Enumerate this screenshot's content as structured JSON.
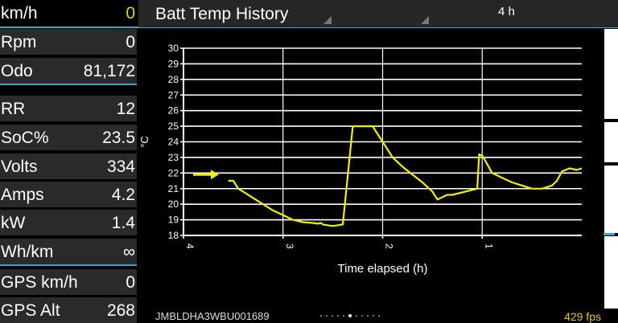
{
  "sidebar": {
    "rows": [
      {
        "label": "km/h",
        "value": "0"
      },
      {
        "label": "Rpm",
        "value": "0"
      },
      {
        "label": "Odo",
        "value": "81,172"
      },
      {
        "label": "RR",
        "value": "12"
      },
      {
        "label": "SoC%",
        "value": "23.5"
      },
      {
        "label": "Volts",
        "value": "334"
      },
      {
        "label": "Amps",
        "value": "4.2"
      },
      {
        "label": "kW",
        "value": "1.4"
      },
      {
        "label": "Wh/km",
        "value": "∞"
      },
      {
        "label": "GPS km/h",
        "value": "0"
      },
      {
        "label": "GPS Alt",
        "value": "268"
      }
    ]
  },
  "header": {
    "title": "Batt Temp History",
    "range": "4 h"
  },
  "footer": {
    "vin": "JMBLDHA3WBU001689",
    "fps": "429 fps"
  },
  "colors": {
    "accent": "#32a6c8",
    "line": "#f0f000",
    "highlight": "#c8e000",
    "fps": "#e6c800"
  },
  "chart_data": {
    "type": "line",
    "title": "",
    "xlabel": "Time elapsed (h)",
    "ylabel": "°C",
    "xlim": [
      4,
      0
    ],
    "ylim": [
      18,
      30
    ],
    "x_ticks": [
      "4",
      "3",
      "2",
      "1"
    ],
    "y_ticks": [
      "18",
      "19",
      "20",
      "21",
      "22",
      "23",
      "24",
      "25",
      "26",
      "27",
      "28",
      "29",
      "30"
    ],
    "annotation": "arrow pointing at current series start",
    "series": [
      {
        "x": [
          3.55,
          3.5,
          3.45,
          3.4,
          3.3,
          3.2,
          3.1,
          3.0,
          2.9,
          2.8,
          2.7,
          2.65,
          2.62,
          2.6,
          2.5,
          2.4,
          2.3,
          2.2,
          2.1,
          2.0,
          1.9,
          1.8,
          1.7,
          1.6,
          1.5,
          1.45,
          1.35,
          1.3,
          1.05,
          1.03,
          1.0,
          0.97,
          0.9,
          0.8,
          0.7,
          0.6,
          0.5,
          0.4,
          0.3,
          0.25,
          0.2,
          0.12,
          0.05,
          0.0
        ],
        "y": [
          21.5,
          21.5,
          21.0,
          20.8,
          20.4,
          20.0,
          19.6,
          19.3,
          19.0,
          18.85,
          18.8,
          18.75,
          18.8,
          18.7,
          18.6,
          18.7,
          25.0,
          25.0,
          25.0,
          24.0,
          23.0,
          22.4,
          21.9,
          21.4,
          20.8,
          20.3,
          20.6,
          20.6,
          21.0,
          23.2,
          23.1,
          22.8,
          22.0,
          21.7,
          21.4,
          21.2,
          21.0,
          21.0,
          21.2,
          21.5,
          22.1,
          22.3,
          22.2,
          22.3
        ]
      }
    ],
    "grid": true
  }
}
